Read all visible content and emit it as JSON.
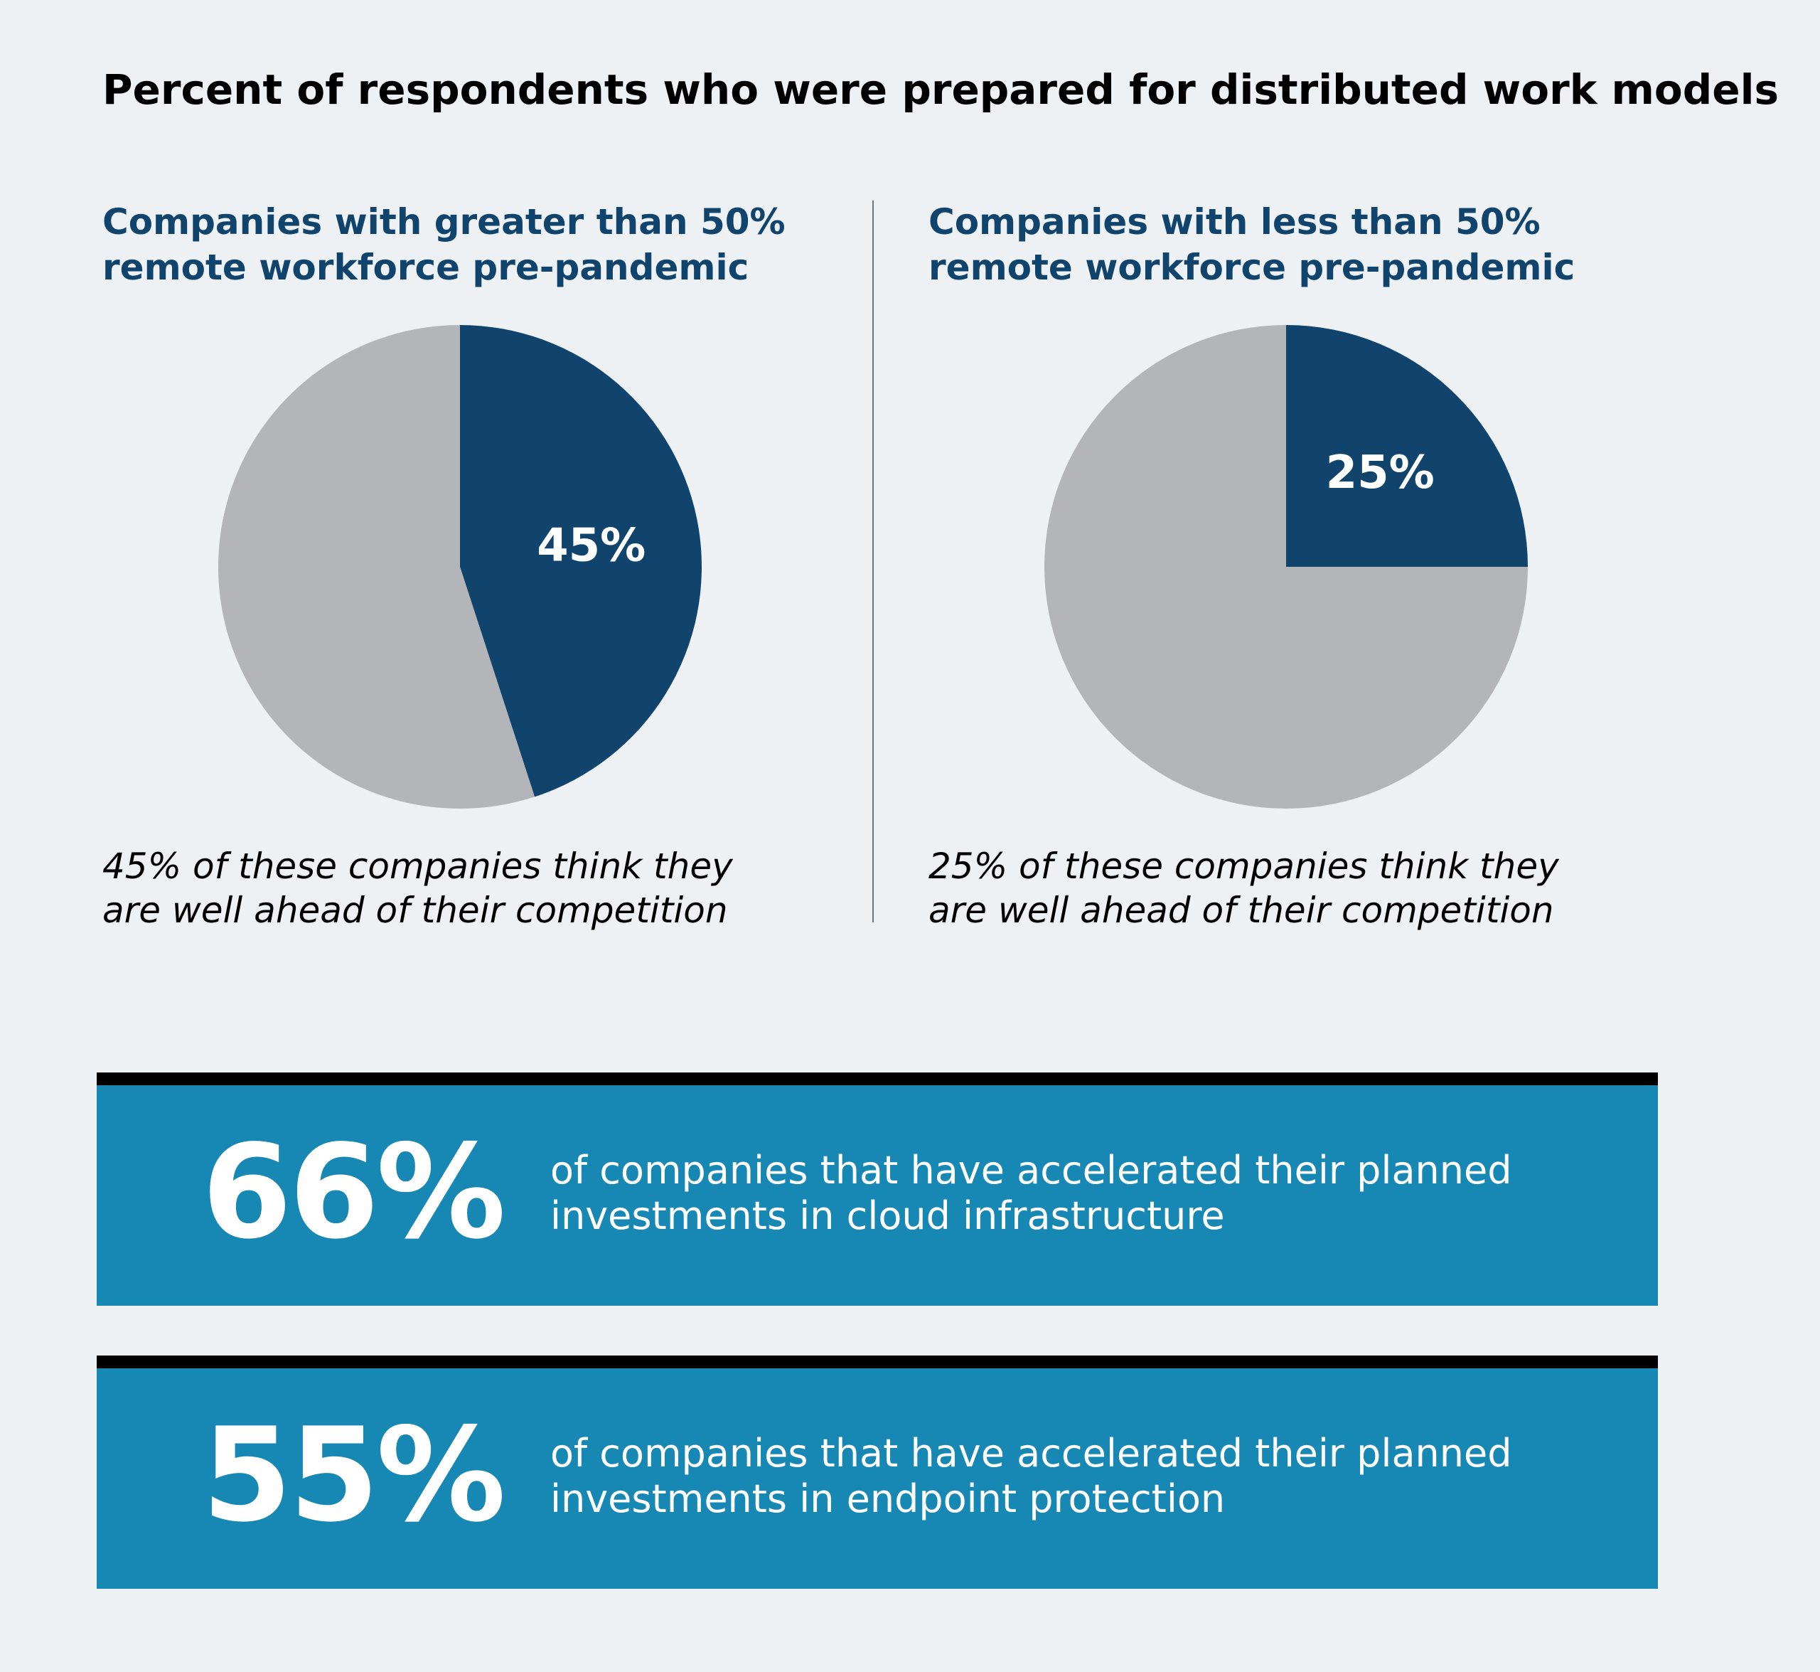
{
  "title": "Percent of respondents who were prepared for distributed work models",
  "colors": {
    "primary": "#10446d",
    "secondary": "#b3b5b8",
    "stat_bg": "#1787b4",
    "background": "#edf1f4"
  },
  "panels": [
    {
      "heading_line1": "Companies with greater than 50%",
      "heading_line2": "remote workforce pre-pandemic",
      "caption_line1": "45% of these companies think they",
      "caption_line2": "are well ahead of their competition"
    },
    {
      "heading_line1": "Companies with less than 50%",
      "heading_line2": "remote workforce pre-pandemic",
      "caption_line1": "25% of these companies think they",
      "caption_line2": "are well ahead of their competition"
    }
  ],
  "chart_data": [
    {
      "type": "pie",
      "title": "Companies with greater than 50% remote workforce pre-pandemic",
      "slices": [
        {
          "value": 45,
          "label": "45%",
          "color": "#10446d"
        },
        {
          "value": 55,
          "label": "",
          "color": "#b3b5b8"
        }
      ]
    },
    {
      "type": "pie",
      "title": "Companies with less than 50% remote workforce pre-pandemic",
      "slices": [
        {
          "value": 25,
          "label": "25%",
          "color": "#10446d"
        },
        {
          "value": 75,
          "label": "",
          "color": "#b3b5b8"
        }
      ]
    }
  ],
  "stats": [
    {
      "number": "66%",
      "text_line1": "of companies that have accelerated their planned",
      "text_line2": "investments in cloud infrastructure"
    },
    {
      "number": "55%",
      "text_line1": "of companies that have accelerated their planned",
      "text_line2": "investments in endpoint protection"
    }
  ]
}
